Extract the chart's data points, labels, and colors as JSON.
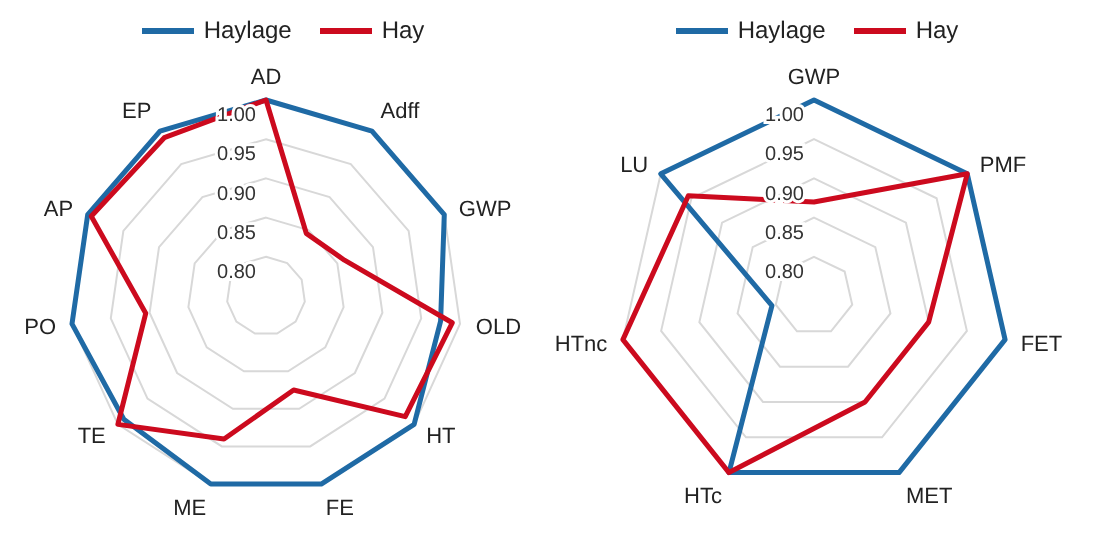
{
  "chart_data": [
    {
      "type": "radar",
      "categories": [
        "AD",
        "Adff",
        "GWP",
        "OLD",
        "HT",
        "FE",
        "ME",
        "TE",
        "PO",
        "AP",
        "EP"
      ],
      "series": [
        {
          "name": "Haylage",
          "color": "#1f6aa5",
          "values": [
            1.0,
            1.0,
            1.0,
            0.975,
            1.0,
            1.0,
            1.0,
            0.99,
            1.0,
            1.0,
            1.0
          ]
        },
        {
          "name": "Hay",
          "color": "#cc0a1e",
          "values": [
            1.0,
            0.845,
            0.86,
            0.99,
            0.985,
            0.875,
            0.94,
            1.0,
            0.905,
            0.995,
            0.99
          ]
        }
      ],
      "ylim": [
        0.75,
        1.0
      ],
      "yticks": [
        {
          "value": 0.8,
          "label": "0.80"
        },
        {
          "value": 0.85,
          "label": "0.85"
        },
        {
          "value": 0.9,
          "label": "0.90"
        },
        {
          "value": 0.95,
          "label": "0.95"
        },
        {
          "value": 1.0,
          "label": "1.00"
        }
      ],
      "grid": true,
      "legend": "top"
    },
    {
      "type": "radar",
      "categories": [
        "GWP",
        "PMF",
        "FET",
        "MET",
        "HTc",
        "HTnc",
        "LU"
      ],
      "series": [
        {
          "name": "Haylage",
          "color": "#1f6aa5",
          "values": [
            1.0,
            1.0,
            1.0,
            1.0,
            1.0,
            0.805,
            1.0
          ]
        },
        {
          "name": "Hay",
          "color": "#cc0a1e",
          "values": [
            0.87,
            1.0,
            0.9,
            0.9,
            1.0,
            1.0,
            0.955
          ]
        }
      ],
      "ylim": [
        0.75,
        1.0
      ],
      "yticks": [
        {
          "value": 0.8,
          "label": "0.80"
        },
        {
          "value": 0.85,
          "label": "0.85"
        },
        {
          "value": 0.9,
          "label": "0.90"
        },
        {
          "value": 0.95,
          "label": "0.95"
        },
        {
          "value": 1.0,
          "label": "1.00"
        }
      ],
      "grid": true,
      "legend": "top"
    }
  ]
}
